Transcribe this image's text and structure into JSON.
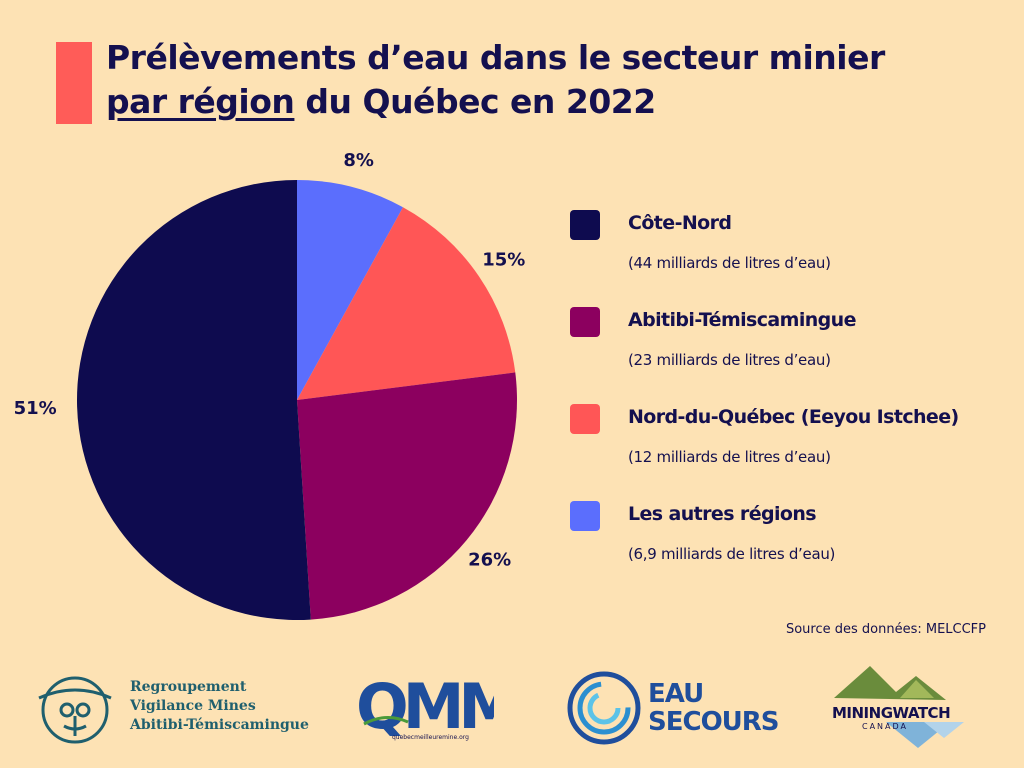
{
  "header": {
    "title_line1": "Prélèvements d’eau dans le secteur minier",
    "title_line2_underlined": "par région",
    "title_line2_rest": " du Québec en 2022"
  },
  "colors": {
    "background": "#fde2b4",
    "accent": "#ff5c58",
    "text": "#14104f"
  },
  "chart_data": {
    "type": "pie",
    "title": "Prélèvements d’eau dans le secteur minier par région du Québec en 2022",
    "slices": [
      {
        "label": "Côte-Nord",
        "value": 51,
        "display": "51%",
        "detail": "(44 milliards de litres d’eau)",
        "color": "#0e0b4f"
      },
      {
        "label": "Abitibi-Témiscamingue",
        "value": 26,
        "display": "26%",
        "detail": "(23 milliards de litres d’eau)",
        "color": "#8c005f"
      },
      {
        "label": "Nord-du-Québec (Eeyou Istchee)",
        "value": 15,
        "display": "15%",
        "detail": "(12 milliards de litres d’eau)",
        "color": "#ff5656"
      },
      {
        "label": "Les autres régions",
        "value": 8,
        "display": "8%",
        "detail": "(6,9 milliards de litres d’eau)",
        "color": "#5b6efd"
      }
    ],
    "legend_position": "right"
  },
  "source": "Source des données: MELCCFP",
  "logos": {
    "rvm": [
      "Regroupement",
      "Vigilance Mines",
      "Abitibi-Témiscamingue"
    ],
    "qmm": {
      "mark": "QMM",
      "url": "quebecmeilleuremine.org"
    },
    "eau_secours": [
      "EAU",
      "SECOURS"
    ],
    "miningwatch": {
      "name": "MININGWATCH",
      "sub": "CANADA"
    }
  }
}
